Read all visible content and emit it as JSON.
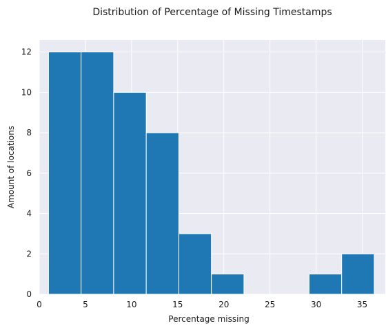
{
  "chart_data": {
    "type": "bar",
    "title": "Distribution of Percentage of Missing Timestamps",
    "xlabel": "Percentage missing",
    "ylabel": "Amount of locations",
    "xlim": [
      0,
      37.5
    ],
    "ylim": [
      0,
      12.6
    ],
    "xticks": [
      0,
      5,
      10,
      15,
      20,
      25,
      30,
      35
    ],
    "yticks": [
      0,
      2,
      4,
      6,
      8,
      10,
      12
    ],
    "bins": [
      {
        "x0": 1.0,
        "x1": 4.53,
        "count": 12
      },
      {
        "x0": 4.53,
        "x1": 8.06,
        "count": 12
      },
      {
        "x0": 8.06,
        "x1": 11.59,
        "count": 10
      },
      {
        "x0": 11.59,
        "x1": 15.12,
        "count": 8
      },
      {
        "x0": 15.12,
        "x1": 18.65,
        "count": 3
      },
      {
        "x0": 18.65,
        "x1": 22.18,
        "count": 1
      },
      {
        "x0": 22.18,
        "x1": 25.71,
        "count": 0
      },
      {
        "x0": 25.71,
        "x1": 29.24,
        "count": 0
      },
      {
        "x0": 29.24,
        "x1": 32.77,
        "count": 1
      },
      {
        "x0": 32.77,
        "x1": 36.3,
        "count": 2
      }
    ],
    "bar_color": "#1f77b4",
    "background_color": "#eaeaf2",
    "grid": true,
    "grid_color": "#ffffff"
  }
}
